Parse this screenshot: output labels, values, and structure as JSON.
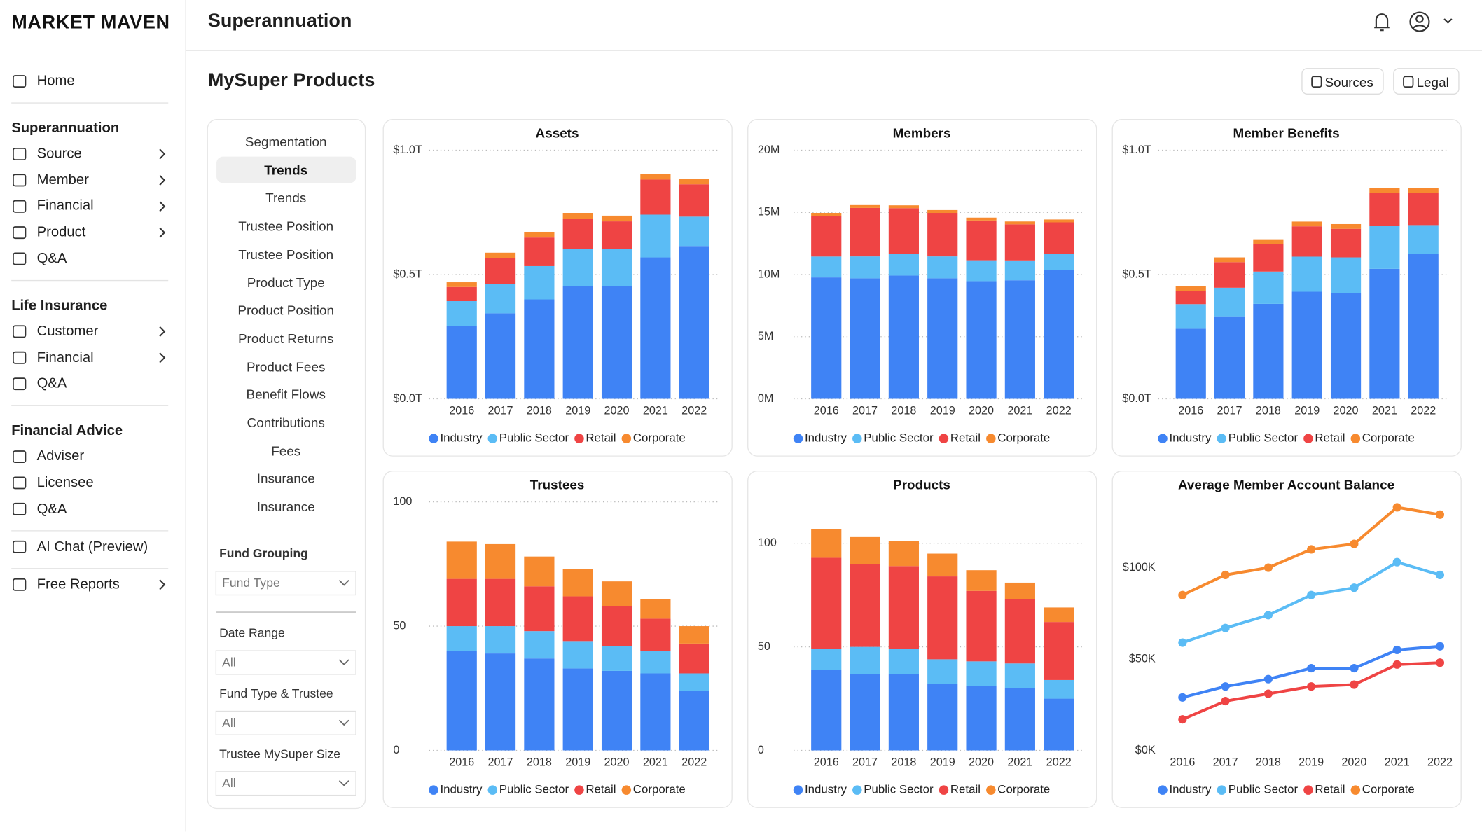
{
  "brand": "MARKET MAVEN",
  "header": {
    "title": "Superannuation"
  },
  "page_title": "MySuper Products",
  "buttons": [
    "Sources",
    "Legal"
  ],
  "nav": [
    {
      "items": [
        {
          "label": "Home"
        }
      ]
    },
    {
      "title": "Superannuation",
      "items": [
        {
          "label": "Source",
          "chevron": true
        },
        {
          "label": "Member",
          "chevron": true
        },
        {
          "label": "Financial",
          "chevron": true
        },
        {
          "label": "Product",
          "chevron": true
        },
        {
          "label": "Q&A"
        }
      ]
    },
    {
      "title": "Life Insurance",
      "items": [
        {
          "label": "Customer",
          "chevron": true
        },
        {
          "label": "Financial",
          "chevron": true
        },
        {
          "label": "Q&A"
        }
      ]
    },
    {
      "title": "Financial Advice",
      "items": [
        {
          "label": "Adviser"
        },
        {
          "label": "Licensee"
        },
        {
          "label": "Q&A"
        }
      ]
    },
    {
      "items": [
        {
          "label": "AI Chat (Preview)"
        }
      ]
    },
    {
      "items": [
        {
          "label": "Free Reports",
          "chevron": true
        }
      ]
    }
  ],
  "subnav": {
    "items": [
      "Segmentation",
      "Trends",
      "Trends",
      "Trustee Position",
      "Trustee Position",
      "Product Type",
      "Product Position",
      "Product Returns",
      "Product Fees",
      "Benefit Flows",
      "Contributions",
      "Fees",
      "Insurance",
      "Insurance"
    ],
    "active": 1
  },
  "filters": [
    {
      "label": "Fund Grouping",
      "value": "Fund Type"
    },
    {
      "label": "Date Range",
      "value": "All"
    },
    {
      "label": "Fund Type & Trustee",
      "value": "All"
    },
    {
      "label": "Trustee MySuper Size",
      "value": "All"
    }
  ],
  "chart_data": [
    {
      "type": "bar",
      "title": "Assets",
      "categories": [
        "2016",
        "2017",
        "2018",
        "2019",
        "2020",
        "2021",
        "2022"
      ],
      "series": [
        {
          "name": "Industry",
          "color": "#3f83f5",
          "values": [
            0.294,
            0.344,
            0.4,
            0.454,
            0.454,
            0.569,
            0.615
          ]
        },
        {
          "name": "Public Sector",
          "color": "#5bbcf5",
          "values": [
            0.099,
            0.118,
            0.134,
            0.149,
            0.149,
            0.172,
            0.118
          ]
        },
        {
          "name": "Retail",
          "color": "#ef4444",
          "values": [
            0.057,
            0.103,
            0.115,
            0.122,
            0.111,
            0.141,
            0.13
          ]
        },
        {
          "name": "Corporate",
          "color": "#f78a2f",
          "values": [
            0.019,
            0.023,
            0.023,
            0.023,
            0.023,
            0.023,
            0.023
          ]
        }
      ],
      "ylim": [
        0,
        1.0
      ],
      "yticks": [
        {
          "value": 0,
          "label": "$0.0T"
        },
        {
          "value": 0.5,
          "label": "$0.5T"
        },
        {
          "value": 1.0,
          "label": "$1.0T"
        }
      ],
      "grid": true
    },
    {
      "type": "bar",
      "title": "Members",
      "categories": [
        "2016",
        "2017",
        "2018",
        "2019",
        "2020",
        "2021",
        "2022"
      ],
      "series": [
        {
          "name": "Industry",
          "color": "#3f83f5",
          "values": [
            9.77,
            9.7,
            9.92,
            9.7,
            9.47,
            9.54,
            10.38
          ]
        },
        {
          "name": "Public Sector",
          "color": "#5bbcf5",
          "values": [
            1.68,
            1.76,
            1.76,
            1.76,
            1.68,
            1.6,
            1.3
          ]
        },
        {
          "name": "Retail",
          "color": "#ef4444",
          "values": [
            3.28,
            3.9,
            3.66,
            3.5,
            3.2,
            2.9,
            2.52
          ]
        },
        {
          "name": "Corporate",
          "color": "#f78a2f",
          "values": [
            0.23,
            0.23,
            0.23,
            0.23,
            0.23,
            0.23,
            0.23
          ]
        }
      ],
      "ylim": [
        0,
        20
      ],
      "yticks": [
        {
          "value": 0,
          "label": "0M"
        },
        {
          "value": 5,
          "label": "5M"
        },
        {
          "value": 10,
          "label": "10M"
        },
        {
          "value": 15,
          "label": "15M"
        },
        {
          "value": 20,
          "label": "20M"
        }
      ],
      "grid": true
    },
    {
      "type": "bar",
      "title": "Member Benefits",
      "categories": [
        "2016",
        "2017",
        "2018",
        "2019",
        "2020",
        "2021",
        "2022"
      ],
      "series": [
        {
          "name": "Industry",
          "color": "#3f83f5",
          "values": [
            0.282,
            0.332,
            0.382,
            0.431,
            0.424,
            0.523,
            0.584
          ]
        },
        {
          "name": "Public Sector",
          "color": "#5bbcf5",
          "values": [
            0.099,
            0.115,
            0.13,
            0.141,
            0.145,
            0.172,
            0.115
          ]
        },
        {
          "name": "Retail",
          "color": "#ef4444",
          "values": [
            0.053,
            0.103,
            0.111,
            0.122,
            0.115,
            0.134,
            0.13
          ]
        },
        {
          "name": "Corporate",
          "color": "#f78a2f",
          "values": [
            0.019,
            0.019,
            0.019,
            0.019,
            0.019,
            0.019,
            0.019
          ]
        }
      ],
      "ylim": [
        0,
        1.0
      ],
      "yticks": [
        {
          "value": 0,
          "label": "$0.0T"
        },
        {
          "value": 0.5,
          "label": "$0.5T"
        },
        {
          "value": 1.0,
          "label": "$1.0T"
        }
      ],
      "grid": true
    },
    {
      "type": "bar",
      "title": "Trustees",
      "categories": [
        "2016",
        "2017",
        "2018",
        "2019",
        "2020",
        "2021",
        "2022"
      ],
      "series": [
        {
          "name": "Industry",
          "color": "#3f83f5",
          "values": [
            40,
            39,
            37,
            33,
            32,
            31,
            24
          ]
        },
        {
          "name": "Public Sector",
          "color": "#5bbcf5",
          "values": [
            10,
            11,
            11,
            11,
            10,
            9,
            7
          ]
        },
        {
          "name": "Retail",
          "color": "#ef4444",
          "values": [
            19,
            19,
            18,
            18,
            16,
            13,
            12
          ]
        },
        {
          "name": "Corporate",
          "color": "#f78a2f",
          "values": [
            15,
            14,
            12,
            11,
            10,
            8,
            7
          ]
        }
      ],
      "ylim": [
        0,
        100
      ],
      "yticks": [
        0,
        50,
        100
      ],
      "grid": true
    },
    {
      "type": "bar",
      "title": "Products",
      "categories": [
        "2016",
        "2017",
        "2018",
        "2019",
        "2020",
        "2021",
        "2022"
      ],
      "series": [
        {
          "name": "Industry",
          "color": "#3f83f5",
          "values": [
            39,
            37,
            37,
            32,
            31,
            30,
            25
          ]
        },
        {
          "name": "Public Sector",
          "color": "#5bbcf5",
          "values": [
            10,
            13,
            12,
            12,
            12,
            12,
            9
          ]
        },
        {
          "name": "Retail",
          "color": "#ef4444",
          "values": [
            44,
            40,
            40,
            40,
            34,
            31,
            28
          ]
        },
        {
          "name": "Corporate",
          "color": "#f78a2f",
          "values": [
            14,
            13,
            12,
            11,
            10,
            8,
            7
          ]
        }
      ],
      "ylim": [
        0,
        120
      ],
      "yticks": [
        0,
        50,
        100
      ],
      "grid": true
    },
    {
      "type": "line",
      "title": "Average Member Account Balance",
      "categories": [
        "2016",
        "2017",
        "2018",
        "2019",
        "2020",
        "2021",
        "2022"
      ],
      "series": [
        {
          "name": "Industry",
          "color": "#3f83f5",
          "values": [
            29,
            35,
            39,
            45,
            45,
            55,
            57
          ]
        },
        {
          "name": "Public Sector",
          "color": "#5bbcf5",
          "values": [
            59,
            67,
            74,
            85,
            89,
            103,
            96
          ]
        },
        {
          "name": "Retail",
          "color": "#ef4444",
          "values": [
            17,
            27,
            31,
            35,
            36,
            47,
            48
          ]
        },
        {
          "name": "Corporate",
          "color": "#f78a2f",
          "values": [
            85,
            96,
            100,
            110,
            113,
            133,
            129
          ]
        }
      ],
      "ylim": [
        0,
        136
      ],
      "yticks": [
        {
          "value": 0,
          "label": "$0K"
        },
        {
          "value": 50,
          "label": "$50K"
        },
        {
          "value": 100,
          "label": "$100K"
        }
      ],
      "grid": false
    }
  ]
}
